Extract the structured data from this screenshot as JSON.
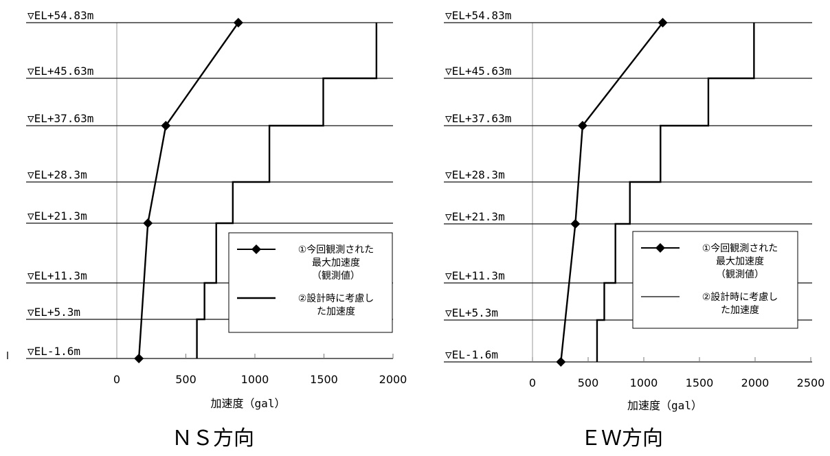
{
  "chart_data": [
    {
      "type": "line",
      "title": "",
      "caption": "ＮＳ方向",
      "xlabel": "加速度（gal）",
      "ylabel": "",
      "xlim": [
        0,
        2000
      ],
      "xticks": [
        0,
        500,
        1000,
        1500,
        2000
      ],
      "levels": [
        "▽EL+54.83m",
        "▽EL+45.63m",
        "▽EL+37.63m",
        "▽EL+28.3m",
        "▽EL+21.3m",
        "▽EL+11.3m",
        "▽EL+5.3m",
        "▽EL-1.6m"
      ],
      "elevations": [
        54.83,
        45.63,
        37.63,
        28.3,
        21.3,
        11.3,
        5.3,
        -1.6
      ],
      "series": [
        {
          "name": "①今回観測された最大加速度（観測値）",
          "legend_lines": [
            "①今回観測された",
            "最大加速度",
            "（観測値）"
          ],
          "style": "line-diamond",
          "points": [
            {
              "elevation": 54.83,
              "acc": 880
            },
            {
              "elevation": 37.63,
              "acc": 355
            },
            {
              "elevation": 21.3,
              "acc": 225
            },
            {
              "elevation": -1.6,
              "acc": 160
            }
          ]
        },
        {
          "name": "②設計時に考慮した加速度",
          "legend_lines": [
            "②設計時に考慮し",
            "た加速度"
          ],
          "style": "step",
          "steps": [
            {
              "from": 54.83,
              "to": 45.63,
              "acc": 1880
            },
            {
              "from": 45.63,
              "to": 37.63,
              "acc": 1495
            },
            {
              "from": 37.63,
              "to": 28.3,
              "acc": 1105
            },
            {
              "from": 28.3,
              "to": 21.3,
              "acc": 840
            },
            {
              "from": 21.3,
              "to": 11.3,
              "acc": 720
            },
            {
              "from": 11.3,
              "to": 5.3,
              "acc": 635
            },
            {
              "from": 5.3,
              "to": -1.6,
              "acc": 580
            }
          ]
        }
      ],
      "legend": "bottom-right",
      "grid": "horizontal lines at each level"
    },
    {
      "type": "line",
      "title": "",
      "caption": "ＥＷ方向",
      "xlabel": "加速度（gal）",
      "ylabel": "",
      "xlim": [
        0,
        2500
      ],
      "xticks": [
        0,
        500,
        1000,
        1500,
        2000,
        2500
      ],
      "levels": [
        "▽EL+54.83m",
        "▽EL+45.63m",
        "▽EL+37.63m",
        "▽EL+28.3m",
        "▽EL+21.3m",
        "▽EL+11.3m",
        "▽EL+5.3m",
        "▽EL-1.6m"
      ],
      "elevations": [
        54.83,
        45.63,
        37.63,
        28.3,
        21.3,
        11.3,
        5.3,
        -1.6
      ],
      "series": [
        {
          "name": "①今回観測された最大加速度（観測値）",
          "legend_lines": [
            "①今回観測された",
            "最大加速度",
            "（観測値）"
          ],
          "style": "line-diamond",
          "points": [
            {
              "elevation": 54.83,
              "acc": 1170
            },
            {
              "elevation": 37.63,
              "acc": 450
            },
            {
              "elevation": 21.3,
              "acc": 385
            },
            {
              "elevation": -1.6,
              "acc": 255
            }
          ]
        },
        {
          "name": "②設計時に考慮した加速度",
          "legend_lines": [
            "②設計時に考慮し",
            "た加速度"
          ],
          "style": "step",
          "steps": [
            {
              "from": 54.83,
              "to": 45.63,
              "acc": 1990
            },
            {
              "from": 45.63,
              "to": 37.63,
              "acc": 1580
            },
            {
              "from": 37.63,
              "to": 28.3,
              "acc": 1150
            },
            {
              "from": 28.3,
              "to": 21.3,
              "acc": 875
            },
            {
              "from": 21.3,
              "to": 11.3,
              "acc": 745
            },
            {
              "from": 11.3,
              "to": 5.3,
              "acc": 645
            },
            {
              "from": 5.3,
              "to": -1.6,
              "acc": 580
            }
          ]
        }
      ],
      "legend": "bottom-right",
      "grid": "horizontal lines at each level"
    }
  ]
}
